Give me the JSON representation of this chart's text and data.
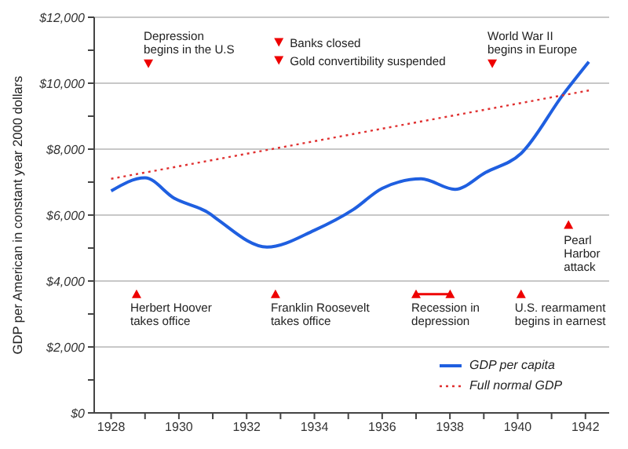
{
  "chart_data": {
    "type": "line",
    "ylabel": "GDP per American in constant year 2000 dollars",
    "xlim": [
      1927.5,
      1942.7
    ],
    "xticks": [
      1928,
      {
        "value": 1929,
        "label": null
      },
      1930,
      {
        "value": 1931,
        "label": null
      },
      1932,
      {
        "value": 1933,
        "label": null
      },
      1934,
      {
        "value": 1935,
        "label": null
      },
      1936,
      {
        "value": 1937,
        "label": null
      },
      1938,
      {
        "value": 1939,
        "label": null
      },
      1940,
      {
        "value": 1941,
        "label": null
      },
      1942
    ],
    "ylim": [
      0,
      12000
    ],
    "yticks": [
      {
        "value": 0,
        "label": "$0"
      },
      {
        "value": 1000,
        "label": null
      },
      {
        "value": 2000,
        "label": "$2,000"
      },
      {
        "value": 3000,
        "label": null
      },
      {
        "value": 4000,
        "label": "$4,000"
      },
      {
        "value": 5000,
        "label": null
      },
      {
        "value": 6000,
        "label": "$6,000"
      },
      {
        "value": 7000,
        "label": null
      },
      {
        "value": 8000,
        "label": "$8,000"
      },
      {
        "value": 9000,
        "label": null
      },
      {
        "value": 10000,
        "label": "$10,000"
      },
      {
        "value": 11000,
        "label": null
      },
      {
        "value": 12000,
        "label": "$12,000"
      }
    ],
    "grid": "y",
    "legend": "bottom right",
    "marker": "none",
    "series": [
      {
        "name": "GDP per capita",
        "color": "#1f5fe0",
        "line_style": "solid",
        "x": [
          1928,
          1929,
          1929.85,
          1930.9,
          1931.15,
          1932.6,
          1934,
          1935.15,
          1936,
          1937.15,
          1938.15,
          1939.05,
          1940.1,
          1941.35,
          1942.1
        ],
        "values": [
          6730,
          7130,
          6520,
          6050,
          5860,
          5030,
          5540,
          6170,
          6810,
          7100,
          6780,
          7290,
          7870,
          9670,
          10650
        ]
      },
      {
        "name": "Full normal GDP",
        "color": "#e03030",
        "line_style": "dotted",
        "x": [
          1928,
          1942.1
        ],
        "values": [
          7100,
          9780
        ]
      }
    ],
    "annotations": [
      {
        "text": "Depression\nbegins in the U.S",
        "x": 1929.1,
        "y": 10600
      },
      {
        "text": "Banks closed",
        "x": 1932.95,
        "y": 11250
      },
      {
        "text": "Gold convertibility suspended",
        "x": 1932.95,
        "y": 10700
      },
      {
        "text": "World War II\nbegins in Europe",
        "x": 1939.25,
        "y": 10600
      },
      {
        "text": "Pearl\nHarbor\nattack",
        "x": 1941.5,
        "y": 5700
      },
      {
        "text": "Herbert Hoover\ntakes office",
        "x": 1928.75,
        "y": 3600
      },
      {
        "text": "Franklin Roosevelt\ntakes office",
        "x": 1932.85,
        "y": 3600
      },
      {
        "text": "Recession in\ndepression",
        "x": 1937,
        "y": 3600
      },
      {
        "text": "U.S. rearmament\nbegins in earnest",
        "x": 1940.1,
        "y": 3600
      }
    ]
  }
}
